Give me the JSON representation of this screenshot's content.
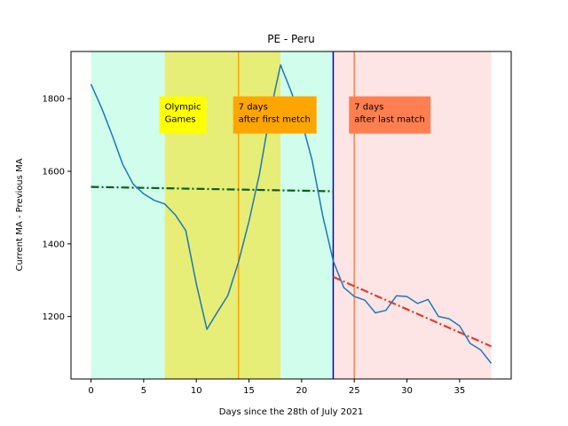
{
  "chart_data": {
    "type": "line",
    "title": "PE - Peru",
    "xlabel": "Days since the 28th of July 2021",
    "ylabel": "Current MA - Previous MA",
    "xlim": [
      -1.9,
      39.9
    ],
    "ylim": [
      1028,
      1930
    ],
    "xticks": [
      0,
      5,
      10,
      15,
      20,
      25,
      30,
      35
    ],
    "yticks": [
      1200,
      1400,
      1600,
      1800
    ],
    "grid": false,
    "series": [
      {
        "name": "",
        "color": "#1f77b4",
        "style": "solid",
        "x": [
          0,
          1,
          2,
          3,
          4,
          5,
          6,
          7,
          8,
          9,
          10,
          11,
          12,
          13,
          14,
          15,
          16,
          17,
          18,
          19,
          20,
          21,
          22,
          23,
          24,
          25,
          26,
          27,
          28,
          29,
          30,
          31,
          32,
          33,
          34,
          35,
          36,
          37,
          38
        ],
        "y": [
          1840,
          1775,
          1700,
          1620,
          1565,
          1538,
          1520,
          1510,
          1480,
          1437,
          1290,
          1165,
          1212,
          1258,
          1350,
          1462,
          1593,
          1760,
          1893,
          1820,
          1738,
          1630,
          1478,
          1353,
          1280,
          1255,
          1245,
          1210,
          1217,
          1257,
          1255,
          1236,
          1247,
          1200,
          1194,
          1174,
          1126,
          1108,
          1071
        ]
      }
    ],
    "trend_lines": [
      {
        "color": "#0c5d1e",
        "style": "dashdot",
        "x": [
          0,
          23
        ],
        "y": [
          1557,
          1545
        ]
      },
      {
        "color": "#e03c2c",
        "style": "dashdot",
        "x": [
          23,
          38
        ],
        "y": [
          1309,
          1118
        ]
      }
    ],
    "shaded_regions": [
      {
        "x_start": 0,
        "x_end": 7,
        "color": "#d0fdec"
      },
      {
        "x_start": 7,
        "x_end": 18,
        "color": "#e6ee78"
      },
      {
        "x_start": 18,
        "x_end": 23,
        "color": "#d0fdec"
      },
      {
        "x_start": 23,
        "x_end": 38,
        "color": "#fee5e5"
      }
    ],
    "vertical_lines": [
      {
        "x": 14,
        "color": "#ffa500"
      },
      {
        "x": 23,
        "color": "#0000cd"
      },
      {
        "x": 25,
        "color": "#ff7f50"
      }
    ],
    "annotations": [
      {
        "lines": [
          "Olympic",
          "Games"
        ],
        "x": 7,
        "y": 1760,
        "box_color": "#ffff00"
      },
      {
        "lines": [
          "7 days",
          "after first metch"
        ],
        "x": 14,
        "y": 1760,
        "box_color": "#ffa500"
      },
      {
        "lines": [
          "7 days",
          "after last match"
        ],
        "x": 25,
        "y": 1760,
        "box_color": "#ff7f50"
      }
    ]
  }
}
